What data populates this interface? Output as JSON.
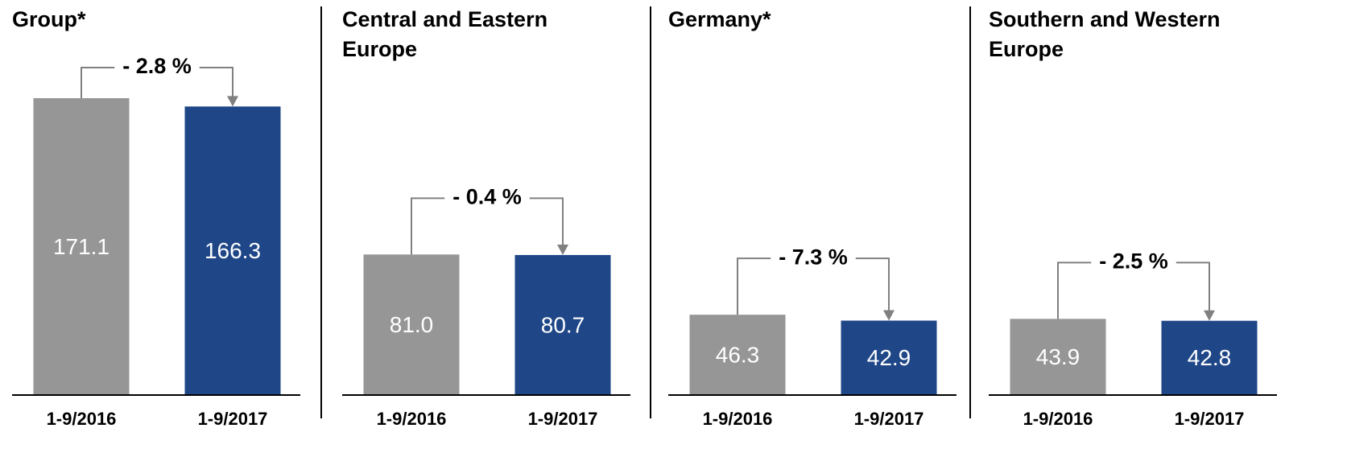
{
  "chart_data": [
    {
      "type": "bar",
      "title": "Group*",
      "categories": [
        "1-9/2016",
        "1-9/2017"
      ],
      "values": [
        171.1,
        166.3
      ],
      "value_labels": [
        "171.1",
        "166.3"
      ],
      "colors": [
        "#969696",
        "#1f4788"
      ],
      "annotation": "- 2.8 %"
    },
    {
      "type": "bar",
      "title": "Central and Eastern Europe",
      "categories": [
        "1-9/2016",
        "1-9/2017"
      ],
      "values": [
        81.0,
        80.7
      ],
      "value_labels": [
        "81.0",
        "80.7"
      ],
      "colors": [
        "#969696",
        "#1f4788"
      ],
      "annotation": "- 0.4 %"
    },
    {
      "type": "bar",
      "title": "Germany*",
      "categories": [
        "1-9/2016",
        "1-9/2017"
      ],
      "values": [
        46.3,
        42.9
      ],
      "value_labels": [
        "46.3",
        "42.9"
      ],
      "colors": [
        "#969696",
        "#1f4788"
      ],
      "annotation": "- 7.3 %"
    },
    {
      "type": "bar",
      "title": "Southern and Western Europe",
      "categories": [
        "1-9/2016",
        "1-9/2017"
      ],
      "values": [
        43.9,
        42.8
      ],
      "value_labels": [
        "43.9",
        "42.8"
      ],
      "colors": [
        "#969696",
        "#1f4788"
      ],
      "annotation": "- 2.5 %"
    }
  ]
}
